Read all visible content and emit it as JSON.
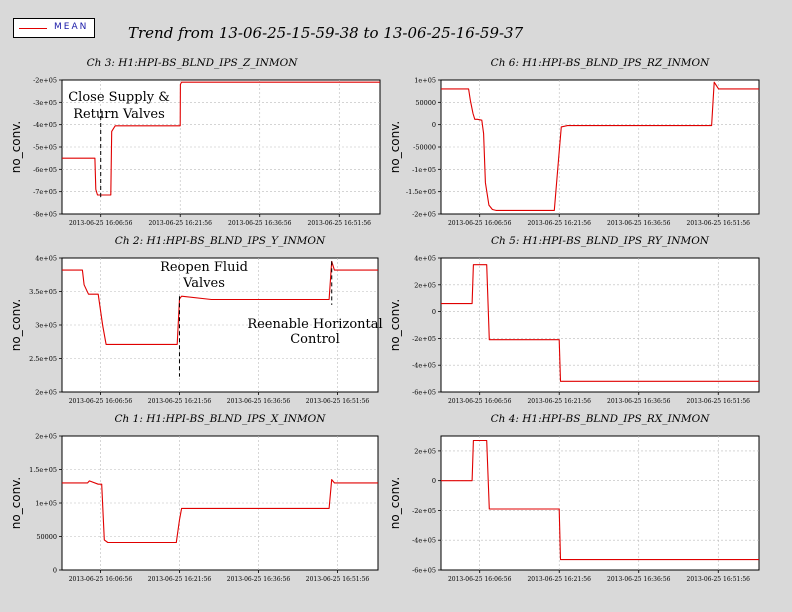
{
  "legend": {
    "label": "MEAN",
    "line_color": "#e00000"
  },
  "page_title": "Trend from 13-06-25-15-59-38 to 13-06-25-16-59-37",
  "colors": {
    "background": "#d9d9d9",
    "plot_bg": "#ffffff",
    "series": "#e00000",
    "grid": "#bbbbbb"
  },
  "x_axis": {
    "range": [
      "2013-06-25 15:59:38",
      "2013-06-25 16:59:37"
    ],
    "tick_values": [
      "2013-06-25 16:06:56",
      "2013-06-25 16:21:56",
      "2013-06-25 16:36:56",
      "2013-06-25 16:51:56"
    ],
    "tick_labels": [
      "2013-06-25 16:06:56",
      "2013-06-25 16:21:56",
      "2013-06-25 16:36:56",
      "2013-06-25 16:51:56"
    ]
  },
  "chart_data": [
    {
      "type": "line",
      "title": "Ch 3: H1:HPI-BS_BLND_IPS_Z_INMON",
      "ylabel": "no_conv.",
      "ylim": [
        -800000,
        -200000
      ],
      "yticks": [
        -200000,
        -300000,
        -400000,
        -500000,
        -600000,
        -700000,
        -800000
      ],
      "ytick_labels": [
        "-2e+05",
        "-3e+05",
        "-4e+05",
        "-5e+05",
        "-6e+05",
        "-7e+05",
        "-8e+05"
      ],
      "series": [
        {
          "x": [
            "15:59:38",
            "16:05:50",
            "16:06:00",
            "16:06:20",
            "16:06:56",
            "16:08:50",
            "16:09:00",
            "16:09:40",
            "16:10:20",
            "16:20:00",
            "16:21:56",
            "16:21:58",
            "16:22:10",
            "16:59:37"
          ],
          "values": [
            -550000,
            -550000,
            -690000,
            -715000,
            -715000,
            -715000,
            -430000,
            -405000,
            -405000,
            -405000,
            -405000,
            -220000,
            -210000,
            -210000
          ]
        }
      ],
      "annotations": [
        {
          "text": [
            "Close Supply &",
            "Return Valves"
          ],
          "marker_x": "16:06:56",
          "marker_y": [
            -330000,
            -730000
          ]
        }
      ]
    },
    {
      "type": "line",
      "title": "Ch 6: H1:HPI-BS_BLND_IPS_RZ_INMON",
      "ylabel": "no_conv.",
      "ylim": [
        -200000,
        100000
      ],
      "yticks": [
        100000,
        50000,
        0,
        -50000,
        -100000,
        -150000,
        -200000
      ],
      "ytick_labels": [
        "1e+05",
        "50000",
        "0",
        "-50000",
        "-1e+05",
        "-1.5e+05",
        "-2e+05"
      ],
      "series": [
        {
          "x": [
            "15:59:38",
            "16:04:50",
            "16:05:10",
            "16:05:40",
            "16:06:00",
            "16:06:30",
            "16:07:20",
            "16:07:40",
            "16:08:00",
            "16:08:40",
            "16:09:20",
            "16:10:00",
            "16:20:20",
            "16:21:00",
            "16:21:56",
            "16:22:20",
            "16:23:30",
            "16:50:40",
            "16:51:10",
            "16:52:00",
            "16:59:37"
          ],
          "values": [
            80000,
            80000,
            55000,
            25000,
            12000,
            12000,
            10000,
            -20000,
            -130000,
            -180000,
            -190000,
            -192000,
            -192000,
            -192000,
            -60000,
            -5000,
            -2000,
            -2000,
            95000,
            80000,
            80000
          ]
        }
      ],
      "annotations": []
    },
    {
      "type": "line",
      "title": "Ch 2: H1:HPI-BS_BLND_IPS_Y_INMON",
      "ylabel": "no_conv.",
      "ylim": [
        200000,
        400000
      ],
      "yticks": [
        400000,
        350000,
        300000,
        250000,
        200000
      ],
      "ytick_labels": [
        "4e+05",
        "3.5e+05",
        "3e+05",
        "2.5e+05",
        "2e+05"
      ],
      "series": [
        {
          "x": [
            "15:59:38",
            "16:03:30",
            "16:03:50",
            "16:04:40",
            "16:06:30",
            "16:07:20",
            "16:08:00",
            "16:21:30",
            "16:21:56",
            "16:22:20",
            "16:28:00",
            "16:50:20",
            "16:50:50",
            "16:51:20",
            "16:59:37"
          ],
          "values": [
            382000,
            382000,
            360000,
            346000,
            346000,
            300000,
            271000,
            271000,
            339000,
            343000,
            338000,
            338000,
            395000,
            382000,
            382000
          ]
        }
      ],
      "annotations": [
        {
          "text": [
            "Reopen Fluid",
            "Valves"
          ],
          "marker_x": "16:21:56",
          "marker_y": [
            343000,
            223000
          ]
        },
        {
          "text": [
            "Reenable Horizontal",
            "Control"
          ],
          "marker_x": "16:50:50",
          "marker_y": [
            395000,
            330000
          ]
        }
      ]
    },
    {
      "type": "line",
      "title": "Ch 5: H1:HPI-BS_BLND_IPS_RY_INMON",
      "ylabel": "no_conv.",
      "ylim": [
        -600000,
        400000
      ],
      "yticks": [
        400000,
        200000,
        0,
        -200000,
        -400000,
        -600000
      ],
      "ytick_labels": [
        "4e+05",
        "2e+05",
        "0",
        "-2e+05",
        "-4e+05",
        "-6e+05"
      ],
      "series": [
        {
          "x": [
            "15:59:38",
            "16:05:30",
            "16:05:45",
            "16:08:15",
            "16:08:45",
            "16:10:30",
            "16:21:56",
            "16:22:10",
            "16:59:37"
          ],
          "values": [
            60000,
            60000,
            350000,
            350000,
            -210000,
            -210000,
            -210000,
            -520000,
            -520000
          ]
        }
      ],
      "annotations": []
    },
    {
      "type": "line",
      "title": "Ch 1: H1:HPI-BS_BLND_IPS_X_INMON",
      "ylabel": "no_conv.",
      "ylim": [
        0,
        200000
      ],
      "yticks": [
        200000,
        150000,
        100000,
        50000,
        0
      ],
      "ytick_labels": [
        "2e+05",
        "1.5e+05",
        "1e+05",
        "50000",
        "0"
      ],
      "series": [
        {
          "x": [
            "15:59:38",
            "16:04:30",
            "16:04:50",
            "16:06:30",
            "16:07:10",
            "16:07:40",
            "16:08:20",
            "16:21:20",
            "16:21:56",
            "16:22:20",
            "16:23:30",
            "16:50:20",
            "16:50:50",
            "16:51:20",
            "16:59:37"
          ],
          "values": [
            130000,
            130000,
            133000,
            128000,
            128000,
            45000,
            41000,
            41000,
            75000,
            92000,
            92000,
            92000,
            135000,
            130000,
            130000
          ]
        }
      ],
      "annotations": []
    },
    {
      "type": "line",
      "title": "Ch 4: H1:HPI-BS_BLND_IPS_RX_INMON",
      "ylabel": "no_conv.",
      "ylim": [
        -600000,
        300000
      ],
      "yticks": [
        200000,
        0,
        -200000,
        -400000,
        -600000
      ],
      "ytick_labels": [
        "2e+05",
        "0",
        "-2e+05",
        "-4e+05",
        "-6e+05"
      ],
      "series": [
        {
          "x": [
            "15:59:38",
            "16:03:30",
            "16:05:30",
            "16:05:45",
            "16:08:15",
            "16:08:45",
            "16:10:30",
            "16:21:56",
            "16:22:10",
            "16:59:37"
          ],
          "values": [
            0,
            0,
            0,
            270000,
            270000,
            -190000,
            -190000,
            -190000,
            -530000,
            -530000
          ]
        }
      ],
      "annotations": []
    }
  ]
}
